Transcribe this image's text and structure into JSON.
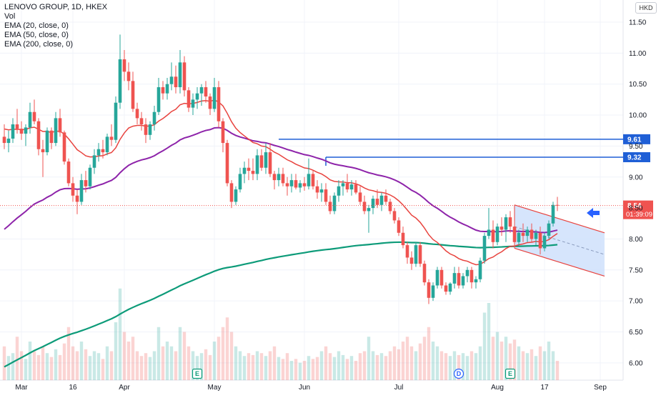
{
  "legend": {
    "title": "LENOVO GROUP, 1D, HKEX",
    "vol": "Vol",
    "ema20": "EMA (20, close, 0)",
    "ema50": "EMA (50, close, 0)",
    "ema200": "EMA (200, close, 0)"
  },
  "currency_label": "HKD",
  "last_price_label": "8.54",
  "countdown": "01:39:09",
  "colors": {
    "up": "#26a69a",
    "down": "#ef5350",
    "ema20": "#e8433e",
    "ema50": "#8e24aa",
    "ema200": "#0d9b79",
    "level": "#1f5fd6",
    "channel": "#e8433e",
    "channel_fill": "#cfe0fb",
    "arrow": "#2962ff"
  },
  "chart_data": {
    "type": "candlestick",
    "title": "LENOVO GROUP, 1D, HKEX",
    "ylim": [
      5.75,
      11.75
    ],
    "y_ticks": [
      "11.50",
      "11.00",
      "10.50",
      "10.00",
      "9.50",
      "9.00",
      "8.50",
      "8.00",
      "7.50",
      "7.00",
      "6.50",
      "6.00"
    ],
    "x_ticks": [
      "Mar",
      "16",
      "Apr",
      "May",
      "Jun",
      "Jul",
      "Aug",
      "17",
      "Sep"
    ],
    "x_tick_index": [
      4,
      16,
      28,
      49,
      70,
      92,
      115,
      126,
      139
    ],
    "candles": [
      [
        9.65,
        9.85,
        9.45,
        9.55
      ],
      [
        9.55,
        9.75,
        9.4,
        9.62
      ],
      [
        9.62,
        9.95,
        9.55,
        9.85
      ],
      [
        9.85,
        10.1,
        9.7,
        9.78
      ],
      [
        9.78,
        9.9,
        9.6,
        9.7
      ],
      [
        9.7,
        9.85,
        9.5,
        9.8
      ],
      [
        9.8,
        10.2,
        9.7,
        10.05
      ],
      [
        10.05,
        10.25,
        9.85,
        9.9
      ],
      [
        9.9,
        9.95,
        9.35,
        9.45
      ],
      [
        9.45,
        9.6,
        9.0,
        9.4
      ],
      [
        9.4,
        9.8,
        9.35,
        9.75
      ],
      [
        9.75,
        9.8,
        9.45,
        9.55
      ],
      [
        9.55,
        10.05,
        9.5,
        9.95
      ],
      [
        9.95,
        10.1,
        9.65,
        9.72
      ],
      [
        9.72,
        9.75,
        9.2,
        9.25
      ],
      [
        9.25,
        9.3,
        8.85,
        8.9
      ],
      [
        8.9,
        9.0,
        8.6,
        8.7
      ],
      [
        8.7,
        8.8,
        8.4,
        8.6
      ],
      [
        8.6,
        9.05,
        8.55,
        8.95
      ],
      [
        8.95,
        9.1,
        8.75,
        8.85
      ],
      [
        8.85,
        9.2,
        8.8,
        9.15
      ],
      [
        9.15,
        9.45,
        9.05,
        9.35
      ],
      [
        9.35,
        9.55,
        9.25,
        9.45
      ],
      [
        9.45,
        9.6,
        9.3,
        9.4
      ],
      [
        9.4,
        9.7,
        9.35,
        9.65
      ],
      [
        9.65,
        9.85,
        9.5,
        9.6
      ],
      [
        9.6,
        10.3,
        9.55,
        10.2
      ],
      [
        10.2,
        11.3,
        10.1,
        10.9
      ],
      [
        10.9,
        11.05,
        10.55,
        10.7
      ],
      [
        10.7,
        10.85,
        10.4,
        10.55
      ],
      [
        10.55,
        10.7,
        10.05,
        10.1
      ],
      [
        10.1,
        10.2,
        9.85,
        9.95
      ],
      [
        9.95,
        10.05,
        9.75,
        9.85
      ],
      [
        9.85,
        9.95,
        9.55,
        9.68
      ],
      [
        9.68,
        9.9,
        9.6,
        9.85
      ],
      [
        9.85,
        10.15,
        9.75,
        10.05
      ],
      [
        10.05,
        10.6,
        10.0,
        10.45
      ],
      [
        10.45,
        10.55,
        10.25,
        10.35
      ],
      [
        10.35,
        10.6,
        10.25,
        10.5
      ],
      [
        10.5,
        10.85,
        10.4,
        10.62
      ],
      [
        10.62,
        10.8,
        10.35,
        10.45
      ],
      [
        10.45,
        11.05,
        10.35,
        10.85
      ],
      [
        10.85,
        10.95,
        10.3,
        10.4
      ],
      [
        10.4,
        10.45,
        10.05,
        10.12
      ],
      [
        10.12,
        10.35,
        10.0,
        10.25
      ],
      [
        10.25,
        10.45,
        10.1,
        10.35
      ],
      [
        10.35,
        10.5,
        10.15,
        10.45
      ],
      [
        10.45,
        10.55,
        10.2,
        10.3
      ],
      [
        10.3,
        10.35,
        10.0,
        10.1
      ],
      [
        10.1,
        10.6,
        10.05,
        10.45
      ],
      [
        10.45,
        10.55,
        9.8,
        9.9
      ],
      [
        9.9,
        9.95,
        9.4,
        9.55
      ],
      [
        9.55,
        9.6,
        8.85,
        8.9
      ],
      [
        8.9,
        8.95,
        8.5,
        8.6
      ],
      [
        8.6,
        8.85,
        8.55,
        8.8
      ],
      [
        8.8,
        9.15,
        8.75,
        9.05
      ],
      [
        9.05,
        9.25,
        8.9,
        9.15
      ],
      [
        9.15,
        9.3,
        8.95,
        9.1
      ],
      [
        9.1,
        9.3,
        8.95,
        9.05
      ],
      [
        9.05,
        9.45,
        8.95,
        9.35
      ],
      [
        9.35,
        9.45,
        9.1,
        9.15
      ],
      [
        9.15,
        9.55,
        9.05,
        9.4
      ],
      [
        9.4,
        9.55,
        9.0,
        9.05
      ],
      [
        9.05,
        9.1,
        8.8,
        8.95
      ],
      [
        8.95,
        9.15,
        8.85,
        9.05
      ],
      [
        9.05,
        9.15,
        8.85,
        8.9
      ],
      [
        8.9,
        9.0,
        8.7,
        8.85
      ],
      [
        8.85,
        9.05,
        8.75,
        8.95
      ],
      [
        8.95,
        9.05,
        8.8,
        8.83
      ],
      [
        8.83,
        8.95,
        8.75,
        8.9
      ],
      [
        8.9,
        9.0,
        8.78,
        8.85
      ],
      [
        8.85,
        9.3,
        8.8,
        9.05
      ],
      [
        9.05,
        9.1,
        8.8,
        8.85
      ],
      [
        8.85,
        8.95,
        8.65,
        8.75
      ],
      [
        8.75,
        8.9,
        8.6,
        8.8
      ],
      [
        8.8,
        8.9,
        8.55,
        8.6
      ],
      [
        8.6,
        8.7,
        8.4,
        8.45
      ],
      [
        8.45,
        8.75,
        8.4,
        8.7
      ],
      [
        8.7,
        8.95,
        8.6,
        8.85
      ],
      [
        8.85,
        8.95,
        8.7,
        8.9
      ],
      [
        8.9,
        9.05,
        8.75,
        8.8
      ],
      [
        8.8,
        8.95,
        8.7,
        8.88
      ],
      [
        8.88,
        8.95,
        8.72,
        8.75
      ],
      [
        8.75,
        8.85,
        8.55,
        8.6
      ],
      [
        8.6,
        8.7,
        8.4,
        8.45
      ],
      [
        8.45,
        8.55,
        8.1,
        8.5
      ],
      [
        8.5,
        8.7,
        8.4,
        8.65
      ],
      [
        8.65,
        8.8,
        8.5,
        8.55
      ],
      [
        8.55,
        8.75,
        8.45,
        8.7
      ],
      [
        8.7,
        8.8,
        8.55,
        8.6
      ],
      [
        8.6,
        8.65,
        8.4,
        8.45
      ],
      [
        8.45,
        8.5,
        8.25,
        8.3
      ],
      [
        8.3,
        8.35,
        8.05,
        8.1
      ],
      [
        8.1,
        8.2,
        7.85,
        7.9
      ],
      [
        7.9,
        7.95,
        7.6,
        7.7
      ],
      [
        7.7,
        7.8,
        7.5,
        7.6
      ],
      [
        7.6,
        7.95,
        7.55,
        7.9
      ],
      [
        7.9,
        7.95,
        7.55,
        7.6
      ],
      [
        7.6,
        7.65,
        7.25,
        7.3
      ],
      [
        7.3,
        7.35,
        6.95,
        7.05
      ],
      [
        7.05,
        7.3,
        7.0,
        7.25
      ],
      [
        7.25,
        7.55,
        7.2,
        7.5
      ],
      [
        7.5,
        7.55,
        7.2,
        7.25
      ],
      [
        7.25,
        7.3,
        7.1,
        7.15
      ],
      [
        7.15,
        7.3,
        7.1,
        7.28
      ],
      [
        7.28,
        7.55,
        7.2,
        7.45
      ],
      [
        7.45,
        7.55,
        7.2,
        7.25
      ],
      [
        7.25,
        7.45,
        7.2,
        7.4
      ],
      [
        7.4,
        7.55,
        7.3,
        7.5
      ],
      [
        7.5,
        7.55,
        7.2,
        7.3
      ],
      [
        7.3,
        7.4,
        7.2,
        7.35
      ],
      [
        7.35,
        7.7,
        7.3,
        7.65
      ],
      [
        7.65,
        8.1,
        7.6,
        8.05
      ],
      [
        8.05,
        8.5,
        8.0,
        8.15
      ],
      [
        8.15,
        8.3,
        7.85,
        7.95
      ],
      [
        7.95,
        8.25,
        7.9,
        8.2
      ],
      [
        8.2,
        8.35,
        8.05,
        8.15
      ],
      [
        8.15,
        8.4,
        7.95,
        8.35
      ],
      [
        8.35,
        8.45,
        8.1,
        8.2
      ],
      [
        8.2,
        8.3,
        7.85,
        7.95
      ],
      [
        7.95,
        8.15,
        7.9,
        8.1
      ],
      [
        8.1,
        8.25,
        7.95,
        8.05
      ],
      [
        8.05,
        8.2,
        7.95,
        8.15
      ],
      [
        8.15,
        8.25,
        7.95,
        8.0
      ],
      [
        8.0,
        8.15,
        7.9,
        8.1
      ],
      [
        8.1,
        8.2,
        7.75,
        7.85
      ],
      [
        7.85,
        8.1,
        7.8,
        8.05
      ],
      [
        8.05,
        8.3,
        8.0,
        8.25
      ],
      [
        8.25,
        8.6,
        8.2,
        8.55
      ],
      [
        8.55,
        8.68,
        8.45,
        8.54
      ]
    ],
    "volumes": [
      0.35,
      0.25,
      0.28,
      0.45,
      0.3,
      0.22,
      0.4,
      0.3,
      0.26,
      0.35,
      0.28,
      0.24,
      0.32,
      0.26,
      0.38,
      0.55,
      0.35,
      0.3,
      0.4,
      0.32,
      0.25,
      0.3,
      0.28,
      0.22,
      0.35,
      0.3,
      0.6,
      0.95,
      0.5,
      0.4,
      0.45,
      0.3,
      0.25,
      0.28,
      0.24,
      0.3,
      0.55,
      0.35,
      0.4,
      0.35,
      0.3,
      0.55,
      0.5,
      0.35,
      0.3,
      0.25,
      0.28,
      0.32,
      0.26,
      0.4,
      0.45,
      0.55,
      0.65,
      0.5,
      0.35,
      0.3,
      0.25,
      0.28,
      0.26,
      0.3,
      0.28,
      0.25,
      0.3,
      0.35,
      0.24,
      0.22,
      0.28,
      0.2,
      0.22,
      0.18,
      0.2,
      0.25,
      0.22,
      0.24,
      0.3,
      0.35,
      0.28,
      0.24,
      0.3,
      0.26,
      0.22,
      0.25,
      0.2,
      0.28,
      0.3,
      0.45,
      0.3,
      0.26,
      0.28,
      0.25,
      0.3,
      0.35,
      0.32,
      0.4,
      0.45,
      0.35,
      0.3,
      0.38,
      0.45,
      0.55,
      0.4,
      0.35,
      0.3,
      0.28,
      0.25,
      0.3,
      0.26,
      0.28,
      0.25,
      0.3,
      0.28,
      0.35,
      0.7,
      0.8,
      0.45,
      0.5,
      0.4,
      0.45,
      0.38,
      0.42,
      0.35,
      0.3,
      0.28,
      0.32,
      0.25,
      0.35,
      0.3,
      0.4,
      0.3,
      0.2
    ],
    "horizontal_levels": [
      9.61,
      9.32
    ],
    "last_price": 8.54,
    "events": [
      {
        "label": "E",
        "at": 45
      },
      {
        "label": "D",
        "at": 106
      },
      {
        "label": "E",
        "at": 118
      }
    ]
  }
}
